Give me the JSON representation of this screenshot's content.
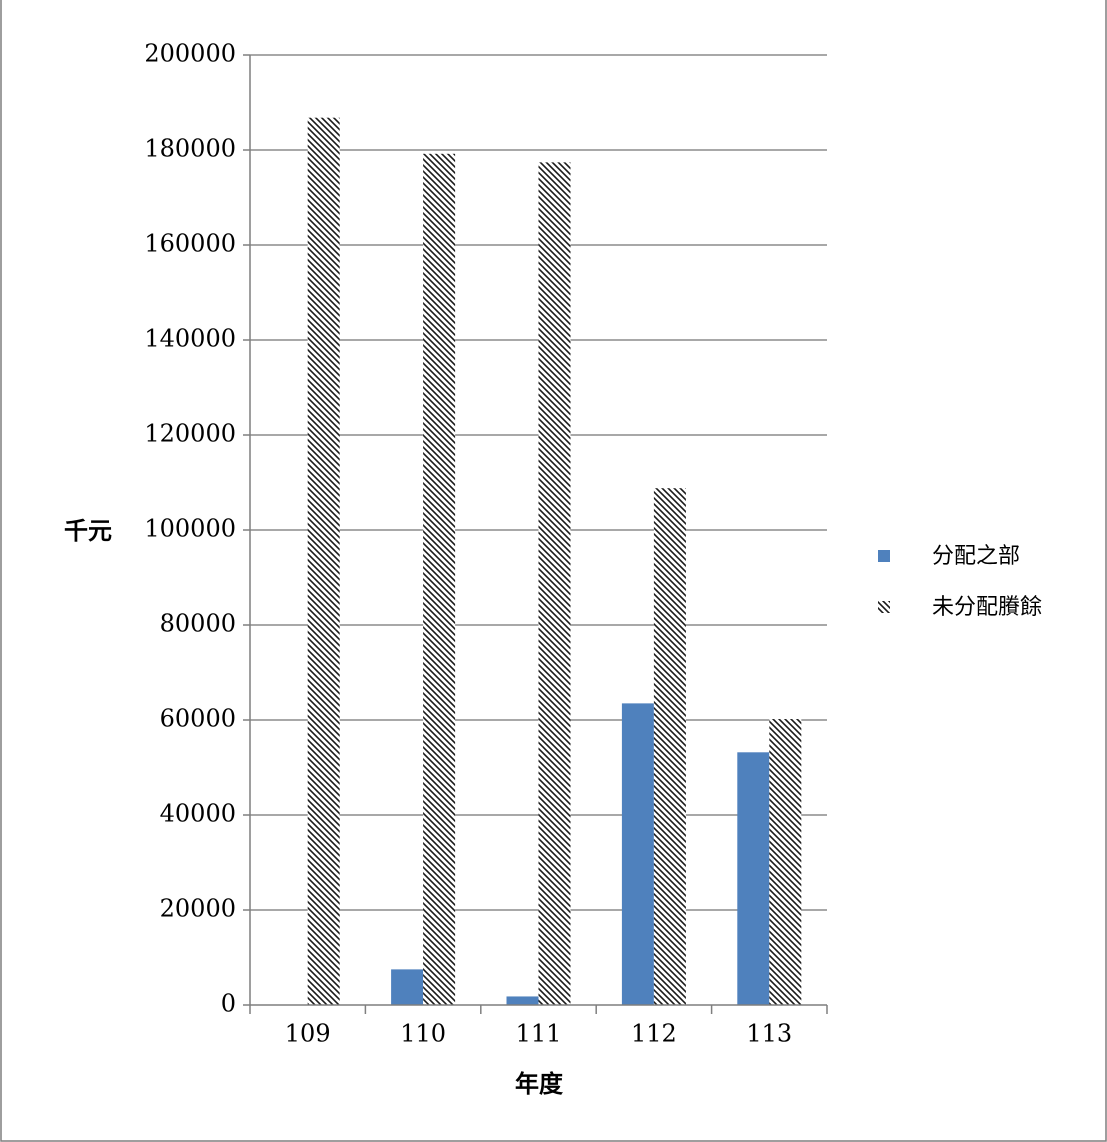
{
  "chart_data": {
    "type": "bar",
    "title": "",
    "xlabel": "年度",
    "ylabel": "千元",
    "categories": [
      "109",
      "110",
      "111",
      "112",
      "113"
    ],
    "series": [
      {
        "name": "分配之部",
        "color": "#4f81bd",
        "pattern": "solid",
        "values": [
          0,
          7500,
          1800,
          63500,
          53200
        ]
      },
      {
        "name": "未分配賸餘",
        "color": "#000000",
        "pattern": "diagonal-hatch",
        "values": [
          186800,
          179200,
          177400,
          108800,
          60200
        ]
      }
    ],
    "ylim": [
      0,
      200000
    ],
    "yticks": [
      0,
      20000,
      40000,
      60000,
      80000,
      100000,
      120000,
      140000,
      160000,
      180000,
      200000
    ],
    "grid": true,
    "legend_position": "right"
  }
}
